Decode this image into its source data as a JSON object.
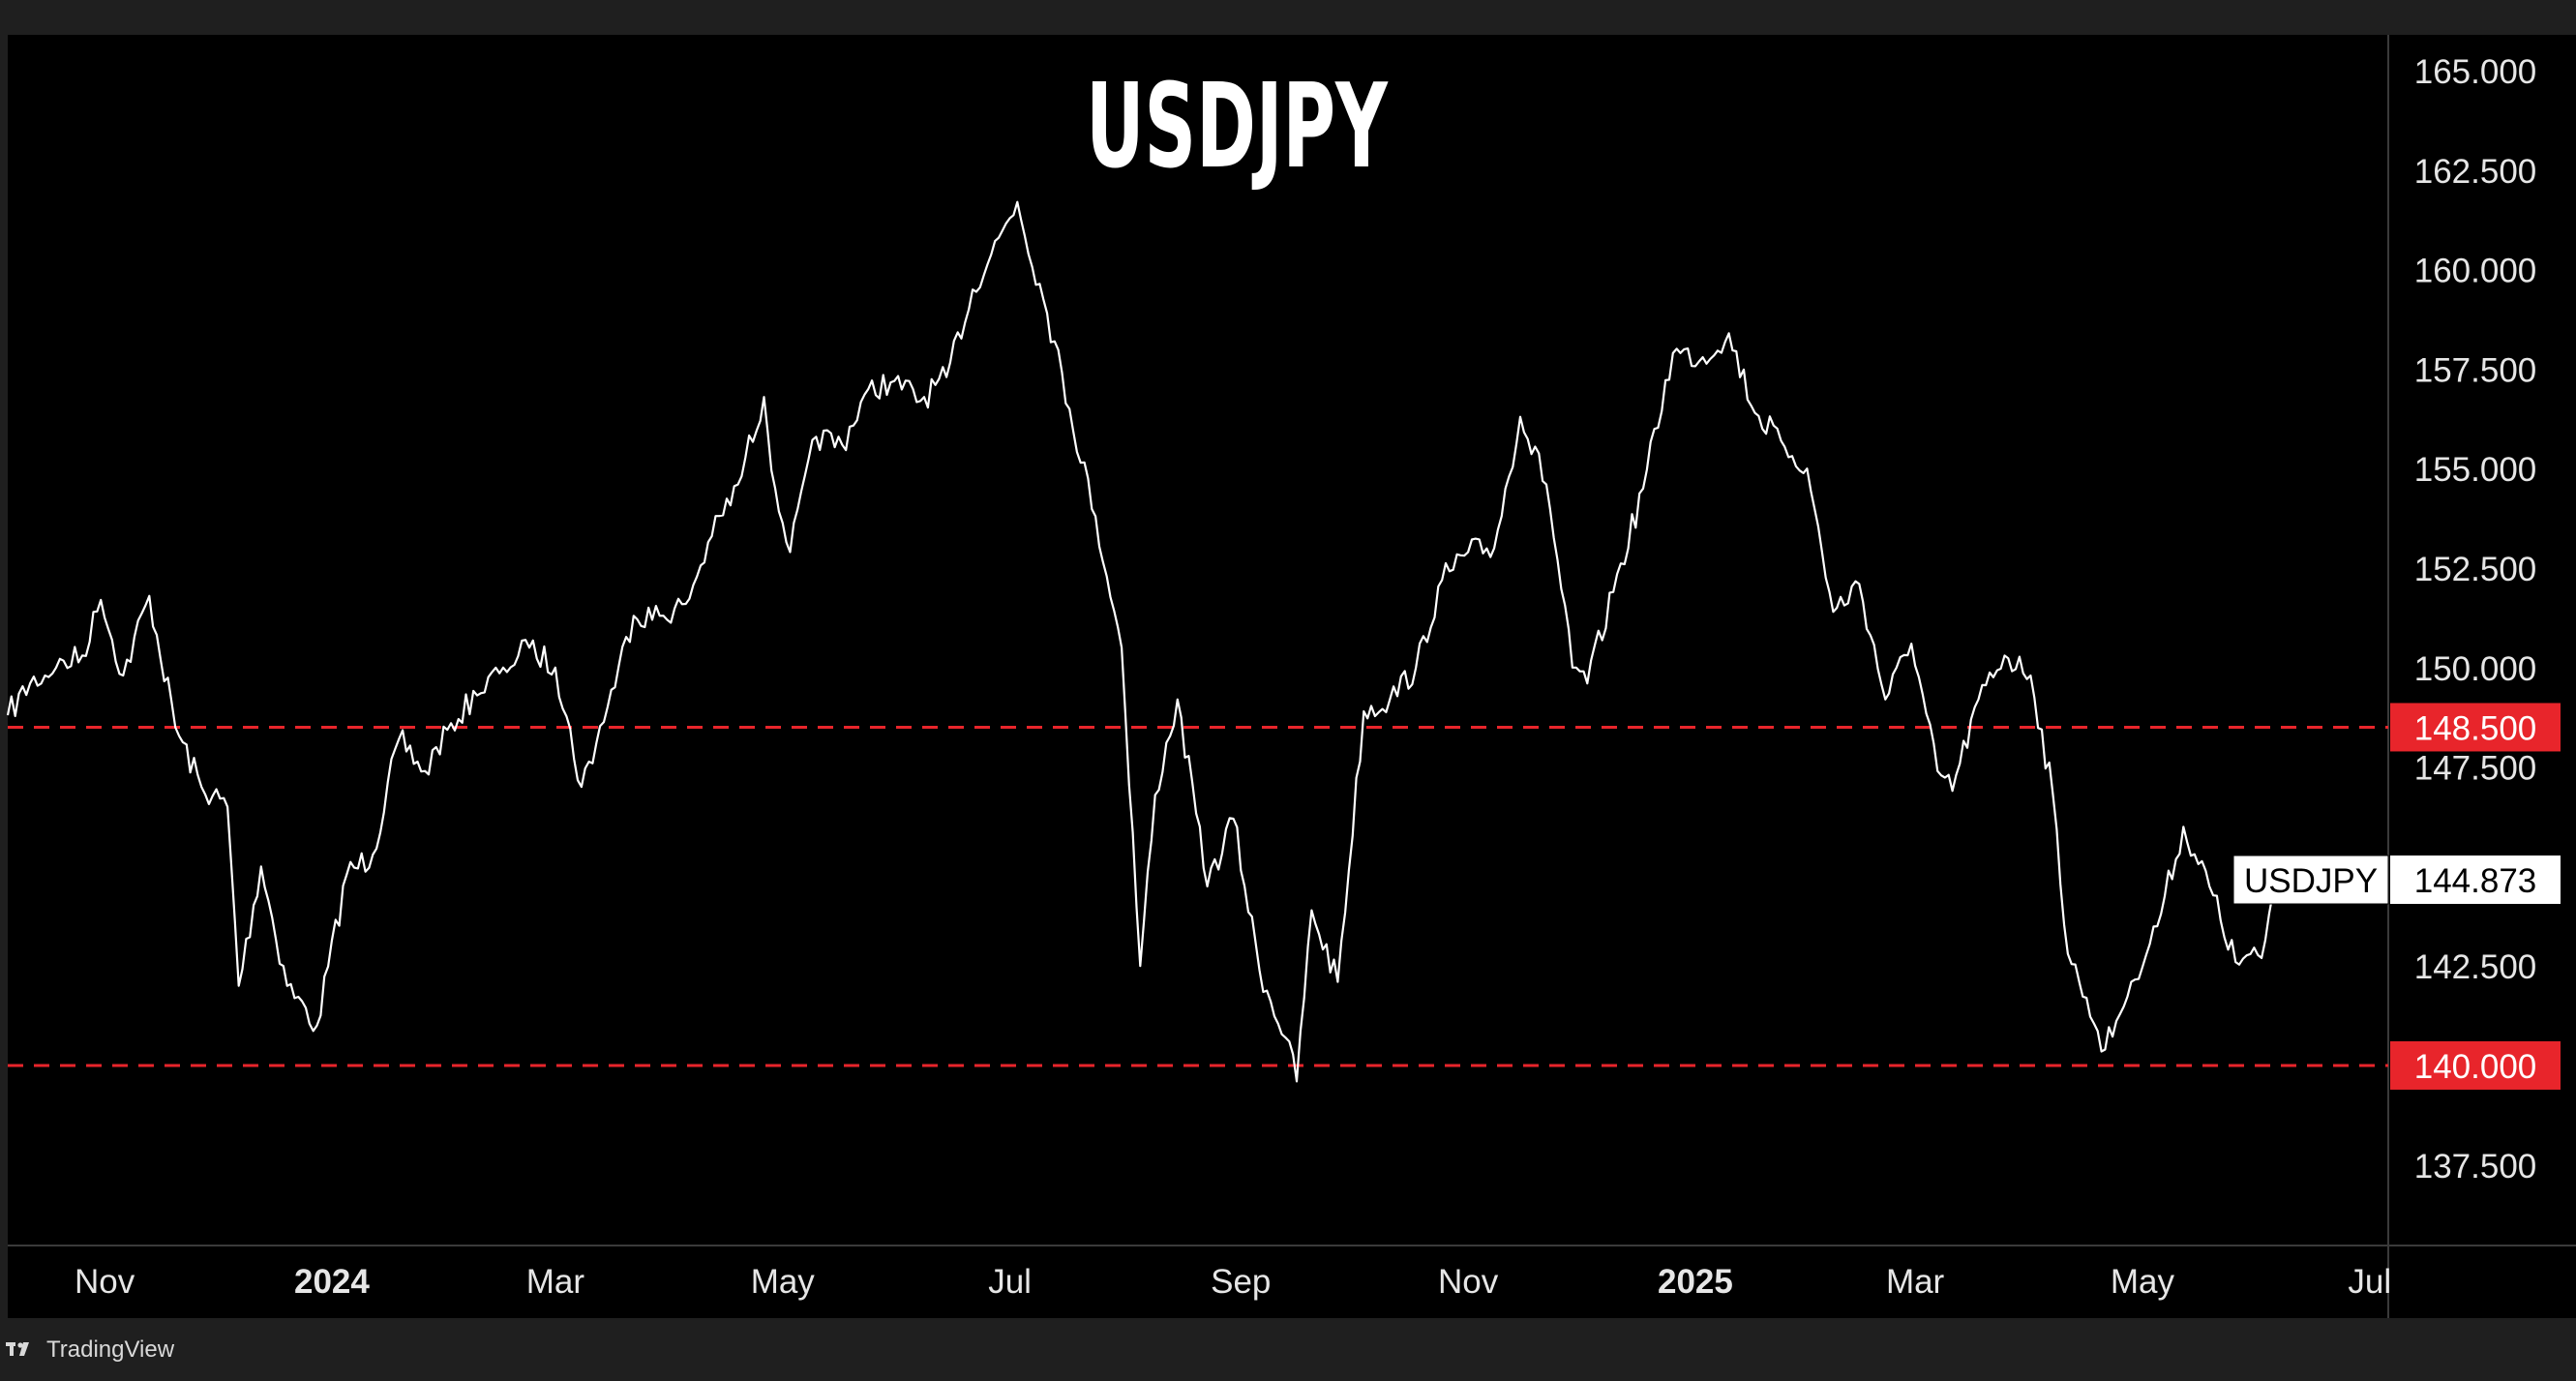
{
  "watermark": {
    "brand": "TradingView"
  },
  "chart_data": {
    "type": "line",
    "title": "USDJPY",
    "symbol": "USDJPY",
    "last_price": "144.873",
    "ylim": [
      135.5,
      165.9
    ],
    "y_ticks": [
      "165.000",
      "162.500",
      "160.000",
      "157.500",
      "155.000",
      "152.500",
      "150.000",
      "147.500",
      "142.500",
      "137.500"
    ],
    "y_tick_values": [
      165,
      162.5,
      160,
      157.5,
      155,
      152.5,
      150,
      147.5,
      142.5,
      137.5
    ],
    "x_ticks": [
      {
        "label": "Nov",
        "date": "2023-11-01",
        "bold": false
      },
      {
        "label": "2024",
        "date": "2024-01-01",
        "bold": true
      },
      {
        "label": "Mar",
        "date": "2024-03-01",
        "bold": false
      },
      {
        "label": "May",
        "date": "2024-05-01",
        "bold": false
      },
      {
        "label": "Jul",
        "date": "2024-07-01",
        "bold": false
      },
      {
        "label": "Sep",
        "date": "2024-09-01",
        "bold": false
      },
      {
        "label": "Nov",
        "date": "2024-11-01",
        "bold": false
      },
      {
        "label": "2025",
        "date": "2025-01-01",
        "bold": true
      },
      {
        "label": "Mar",
        "date": "2025-03-01",
        "bold": false
      },
      {
        "label": "May",
        "date": "2025-05-01",
        "bold": false
      },
      {
        "label": "Jul",
        "date": "2025-07-01",
        "bold": false
      }
    ],
    "xlim": [
      "2023-10-06",
      "2025-07-06"
    ],
    "levels": [
      {
        "label": "148.500",
        "value": 148.5,
        "color": "#e8252b"
      },
      {
        "label": "140.000",
        "value": 140.0,
        "color": "#e8252b"
      }
    ],
    "colors": {
      "line": "#ffffff",
      "background": "#000000",
      "level": "#e8252b"
    },
    "series": [
      {
        "x": [
          "2023-10-06",
          "2023-10-12",
          "2023-10-19",
          "2023-10-26",
          "2023-10-31",
          "2023-11-06",
          "2023-11-13",
          "2023-11-20",
          "2023-11-27",
          "2023-12-04",
          "2023-12-07",
          "2023-12-13",
          "2023-12-20",
          "2023-12-28",
          "2024-01-05",
          "2024-01-12",
          "2024-01-19",
          "2024-01-26",
          "2024-02-02",
          "2024-02-09",
          "2024-02-16",
          "2024-02-23",
          "2024-03-01",
          "2024-03-08",
          "2024-03-15",
          "2024-03-22",
          "2024-03-29",
          "2024-04-05",
          "2024-04-12",
          "2024-04-19",
          "2024-04-26",
          "2024-04-29",
          "2024-05-03",
          "2024-05-10",
          "2024-05-17",
          "2024-05-24",
          "2024-05-31",
          "2024-06-07",
          "2024-06-14",
          "2024-06-21",
          "2024-06-28",
          "2024-07-03",
          "2024-07-11",
          "2024-07-17",
          "2024-07-24",
          "2024-07-31",
          "2024-08-05",
          "2024-08-09",
          "2024-08-15",
          "2024-08-23",
          "2024-08-30",
          "2024-09-06",
          "2024-09-13",
          "2024-09-16",
          "2024-09-20",
          "2024-09-27",
          "2024-10-04",
          "2024-10-11",
          "2024-10-18",
          "2024-10-25",
          "2024-11-01",
          "2024-11-08",
          "2024-11-15",
          "2024-11-22",
          "2024-11-29",
          "2024-12-03",
          "2024-12-10",
          "2024-12-18",
          "2024-12-26",
          "2025-01-03",
          "2025-01-10",
          "2025-01-17",
          "2025-01-24",
          "2025-01-31",
          "2025-02-07",
          "2025-02-14",
          "2025-02-21",
          "2025-02-28",
          "2025-03-07",
          "2025-03-11",
          "2025-03-18",
          "2025-03-25",
          "2025-04-01",
          "2025-04-07",
          "2025-04-11",
          "2025-04-16",
          "2025-04-21",
          "2025-04-28",
          "2025-05-05",
          "2025-05-12",
          "2025-05-19",
          "2025-05-26",
          "2025-06-02",
          "2025-06-06"
        ],
        "values": [
          148.8,
          149.6,
          150.0,
          150.3,
          151.7,
          149.8,
          151.8,
          148.5,
          147.0,
          146.5,
          142.0,
          145.0,
          142.0,
          141.0,
          144.8,
          145.3,
          148.2,
          147.4,
          148.6,
          149.3,
          150.0,
          150.5,
          150.0,
          147.0,
          149.0,
          151.3,
          151.3,
          151.6,
          153.3,
          154.6,
          156.8,
          154.5,
          152.9,
          155.8,
          155.6,
          157.0,
          157.2,
          156.7,
          157.3,
          159.5,
          160.8,
          161.7,
          158.9,
          156.5,
          153.8,
          150.5,
          142.5,
          146.8,
          149.2,
          144.5,
          146.2,
          142.4,
          140.7,
          139.6,
          143.9,
          142.1,
          148.9,
          149.2,
          150.0,
          152.2,
          152.9,
          153.0,
          156.3,
          154.6,
          150.0,
          149.6,
          151.9,
          154.5,
          157.9,
          157.8,
          158.4,
          156.4,
          155.7,
          155.0,
          151.4,
          152.1,
          149.2,
          150.6,
          147.4,
          146.9,
          149.2,
          150.3,
          149.8,
          146.8,
          142.8,
          141.7,
          140.4,
          142.1,
          143.5,
          146.0,
          144.5,
          142.6,
          142.7,
          144.9
        ]
      }
    ]
  }
}
